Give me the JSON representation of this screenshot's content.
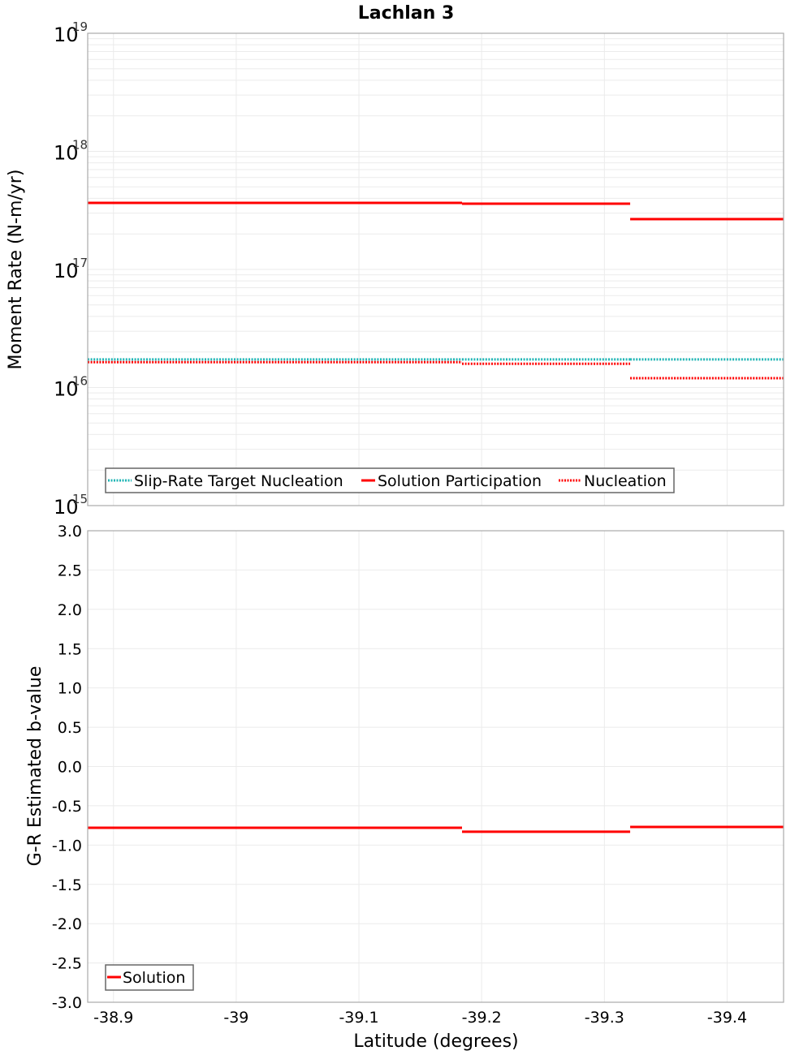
{
  "chart_data": [
    {
      "type": "line",
      "title": "Lachlan 3",
      "xlabel": "Latitude (degrees)",
      "ylabel": "Moment Rate (N-m/yr)",
      "yscale": "log",
      "ylim": [
        1000000000000000.0,
        1e+19
      ],
      "xlim": [
        -38.879,
        -39.446
      ],
      "x_ticks": [
        "-38.9",
        "-39",
        "-39.1",
        "-39.2",
        "-39.3",
        "-39.4"
      ],
      "y_ticks": [
        {
          "base": "10",
          "exp": "15"
        },
        {
          "base": "10",
          "exp": "16"
        },
        {
          "base": "10",
          "exp": "17"
        },
        {
          "base": "10",
          "exp": "18"
        },
        {
          "base": "10",
          "exp": "19"
        }
      ],
      "grid": true,
      "legend_position": "lower-left",
      "series": [
        {
          "name": "Slip-Rate Target Nucleation",
          "color": "#1fb5b5",
          "style": "dotted",
          "segments": [
            {
              "x": [
                -38.879,
                -39.184
              ],
              "y": 1.73e+16
            },
            {
              "x": [
                -39.184,
                -39.321
              ],
              "y": 1.73e+16
            },
            {
              "x": [
                -39.321,
                -39.446
              ],
              "y": 1.73e+16
            }
          ]
        },
        {
          "name": "Solution Participation",
          "color": "#ff0000",
          "style": "solid",
          "segments": [
            {
              "x": [
                -38.879,
                -39.184
              ],
              "y": 3.66e+17
            },
            {
              "x": [
                -39.184,
                -39.321
              ],
              "y": 3.6e+17
            },
            {
              "x": [
                -39.321,
                -39.446
              ],
              "y": 2.67e+17
            }
          ]
        },
        {
          "name": "Nucleation",
          "color": "#ff0000",
          "style": "dotted",
          "segments": [
            {
              "x": [
                -38.879,
                -39.184
              ],
              "y": 1.64e+16
            },
            {
              "x": [
                -39.184,
                -39.321
              ],
              "y": 1.59e+16
            },
            {
              "x": [
                -39.321,
                -39.446
              ],
              "y": 1.2e+16
            }
          ]
        }
      ]
    },
    {
      "type": "line",
      "title": "",
      "xlabel": "Latitude (degrees)",
      "ylabel": "G-R Estimated b-value",
      "ylim": [
        -3.0,
        3.0
      ],
      "xlim": [
        -38.879,
        -39.446
      ],
      "x_ticks": [
        "-38.9",
        "-39",
        "-39.1",
        "-39.2",
        "-39.3",
        "-39.4"
      ],
      "y_ticks": [
        "3.0",
        "2.5",
        "2.0",
        "1.5",
        "1.0",
        "0.5",
        "0.0",
        "-0.5",
        "-1.0",
        "-1.5",
        "-2.0",
        "-2.5",
        "-3.0"
      ],
      "grid": true,
      "legend_position": "lower-left",
      "series": [
        {
          "name": "Solution",
          "color": "#ff0000",
          "style": "solid",
          "segments": [
            {
              "x": [
                -38.879,
                -39.184
              ],
              "y": -0.78
            },
            {
              "x": [
                -39.184,
                -39.321
              ],
              "y": -0.83
            },
            {
              "x": [
                -39.321,
                -39.446
              ],
              "y": -0.77
            }
          ]
        }
      ]
    }
  ],
  "labels": {
    "title": "Lachlan 3",
    "top_ylabel": "Moment Rate (N-m/yr)",
    "bottom_ylabel": "G-R Estimated b-value",
    "xlabel": "Latitude (degrees)",
    "legend_top": [
      "Slip-Rate Target Nucleation",
      "Solution Participation",
      "Nucleation"
    ],
    "legend_bottom": [
      "Solution"
    ]
  },
  "colors": {
    "red": "#ff0000",
    "teal": "#1fb5b5",
    "grid": "#ebebeb",
    "frame": "#aaaaaa"
  }
}
